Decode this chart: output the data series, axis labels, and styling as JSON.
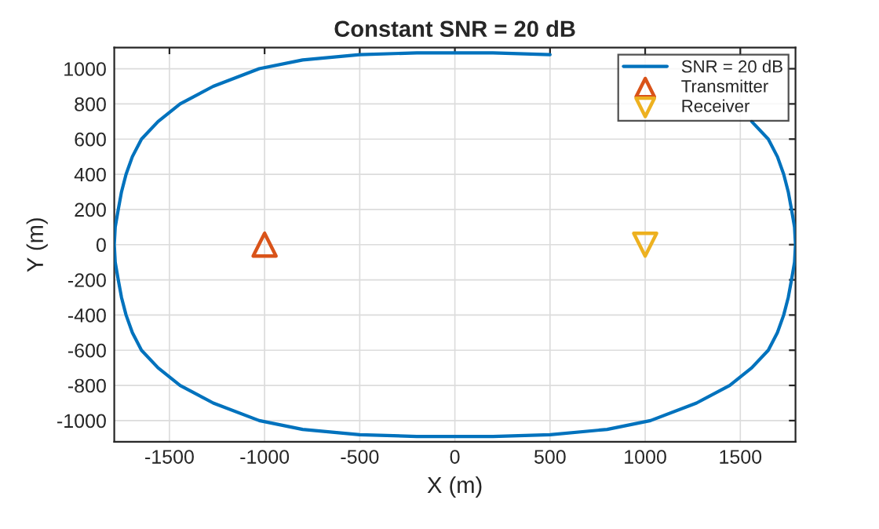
{
  "chart_data": {
    "type": "line",
    "title": "Constant SNR = 20 dB",
    "xlabel": "X (m)",
    "ylabel": "Y (m)",
    "xlim": [
      -1790,
      1790
    ],
    "ylim": [
      -1120,
      1120
    ],
    "xticks": [
      -1500,
      -1000,
      -500,
      0,
      500,
      1000,
      1500
    ],
    "yticks": [
      -1000,
      -800,
      -600,
      -400,
      -200,
      0,
      200,
      400,
      600,
      800,
      1000
    ],
    "grid": true,
    "legend": "top right",
    "series": [
      {
        "name": "SNR = 20 dB",
        "color": "#0072bd",
        "marker": "none",
        "line_style": "solid",
        "x": [
          -1790,
          -1785,
          -1769,
          -1752,
          -1728,
          -1695,
          -1647,
          -1560,
          -1444,
          -1270,
          -1028,
          -800,
          -500,
          -200,
          0,
          200,
          500,
          800,
          1028,
          1270,
          1444,
          1560,
          1647,
          1695,
          1728,
          1752,
          1769,
          1785,
          1790,
          1785,
          1769,
          1752,
          1728,
          1695,
          1647,
          1560,
          1444,
          1270,
          1028,
          800,
          500,
          200,
          0,
          -200,
          -500,
          -800,
          -1028,
          -1270,
          -1444,
          -1560,
          -1647,
          -1695,
          -1728,
          -1752,
          -1769,
          -1785,
          -1790
        ],
        "values": [
          0,
          100,
          200,
          300,
          400,
          500,
          600,
          700,
          800,
          900,
          1000,
          1050,
          1080,
          1090,
          1090,
          1090,
          1080,
          null,
          null,
          null,
          null,
          700,
          600,
          500,
          400,
          300,
          200,
          100,
          0,
          -100,
          -200,
          -300,
          -400,
          -500,
          -600,
          -700,
          -800,
          -900,
          -1000,
          -1050,
          -1080,
          -1090,
          -1090,
          -1090,
          -1080,
          -1050,
          -1000,
          -900,
          -800,
          -700,
          -600,
          -500,
          -400,
          -300,
          -200,
          -100,
          0
        ]
      },
      {
        "name": "Transmitter",
        "type": "scatter",
        "color": "#d95319",
        "marker": "triangle",
        "x": [
          -1000
        ],
        "values": [
          0
        ]
      },
      {
        "name": "Receiver",
        "type": "scatter",
        "color": "#edb120",
        "marker": "triangle_down",
        "x": [
          1000
        ],
        "values": [
          0
        ]
      }
    ]
  }
}
